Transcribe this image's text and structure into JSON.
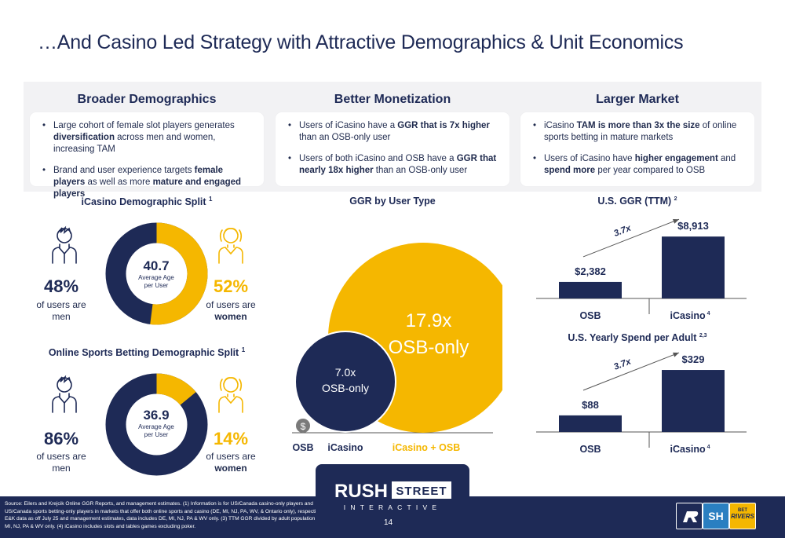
{
  "slide": {
    "title": "…And Casino Led Strategy with Attractive Demographics & Unit Economics",
    "page_number": "14"
  },
  "columns": [
    {
      "heading": "Broader Demographics",
      "bullets": [
        {
          "pre": "Large cohort of female slot players generates ",
          "bold": "diversification",
          "post": " across men and women, increasing TAM"
        },
        {
          "pre": "Brand and user experience targets ",
          "bold": "female players",
          "mid": " as well as more ",
          "bold2": "mature and engaged players",
          "post": ""
        }
      ]
    },
    {
      "heading": "Better Monetization",
      "bullets": [
        {
          "pre": "Users of iCasino have a ",
          "bold": "GGR that is 7x higher",
          "post": " than an OSB-only user"
        },
        {
          "pre": "Users of both iCasino and OSB have a ",
          "bold": "GGR that nearly 18x higher",
          "post": " than an OSB-only user"
        }
      ]
    },
    {
      "heading": "Larger Market",
      "bullets": [
        {
          "pre": "iCasino ",
          "bold": "TAM is more than 3x the size",
          "post": " of online sports betting in mature markets"
        },
        {
          "pre": "Users of iCasino have ",
          "bold": "higher engagement",
          "mid": " and ",
          "bold2": "spend more",
          "post": " per year compared to OSB"
        }
      ]
    }
  ],
  "demographics": {
    "icasino": {
      "heading": "iCasino Demographic Split",
      "heading_sup": "1",
      "average_age": "40.7",
      "age_label_1": "Average Age",
      "age_label_2": "per User",
      "men_pct": "48%",
      "women_pct": "52%",
      "men_share": 0.48,
      "women_share": 0.52,
      "men_label_1": "of users are",
      "men_label_2": "men",
      "women_label_1": "of users are",
      "women_label_2": "women"
    },
    "osb": {
      "heading": "Online Sports Betting Demographic Split",
      "heading_sup": "1",
      "average_age": "36.9",
      "age_label_1": "Average Age",
      "age_label_2": "per User",
      "men_pct": "86%",
      "women_pct": "14%",
      "men_share": 0.86,
      "women_share": 0.14,
      "men_label_1": "of users are",
      "men_label_2": "men",
      "women_label_1": "of users are",
      "women_label_2": "women"
    }
  },
  "ggr_by_user_type": {
    "heading": "GGR by User Type",
    "bubbles": [
      {
        "category": "OSB",
        "value": 1.0,
        "label": "$"
      },
      {
        "category": "iCasino",
        "value": 7.0,
        "label_1": "7.0x",
        "label_2": "OSB-only"
      },
      {
        "category": "iCasino + OSB",
        "value": 17.9,
        "label_1": "17.9x",
        "label_2": "OSB-only"
      }
    ]
  },
  "chart_data": [
    {
      "type": "bar",
      "title": "U.S. GGR (TTM)",
      "title_sup": "2",
      "categories": [
        "OSB",
        "iCasino"
      ],
      "category_sups": [
        "",
        "4"
      ],
      "values": [
        2382,
        8913
      ],
      "value_labels": [
        "$2,382",
        "$8,913"
      ],
      "multiple_label": "3.7x",
      "ylim": [
        0,
        9500
      ]
    },
    {
      "type": "bar",
      "title": "U.S. Yearly Spend per Adult",
      "title_sup": "2,3",
      "categories": [
        "OSB",
        "iCasino"
      ],
      "category_sups": [
        "",
        "4"
      ],
      "values": [
        88,
        329
      ],
      "value_labels": [
        "$88",
        "$329"
      ],
      "multiple_label": "3.7x",
      "ylim": [
        0,
        350
      ]
    }
  ],
  "footer": {
    "source": "Source: Eilers and Krejcik Online GGR Reports, and management estimates. (1) Information is for US/Canada casino-only players and US/Canada sports betting-only players in markets that offer both online sports and casino (DE, MI, NJ, PA, WV, & Ontario only), respectively. (2) E&K data as off July 25 and management estimates, data includes DE, MI, NJ, PA & WV only. (3) TTM GGR divided by adult population in DE, MI, NJ, PA & WV only. (4) iCasino includes slots and tables games excluding poker.",
    "logo_word_1": "RUSH",
    "logo_word_2": "STREET",
    "logo_word_3": "INTERACTIVE",
    "brand_2": "SH",
    "brand_3_a": "BET",
    "brand_3_b": "RIVERS"
  },
  "colors": {
    "navy": "#1e2a56",
    "gold": "#f5b700",
    "panel": "#f2f2f4"
  }
}
